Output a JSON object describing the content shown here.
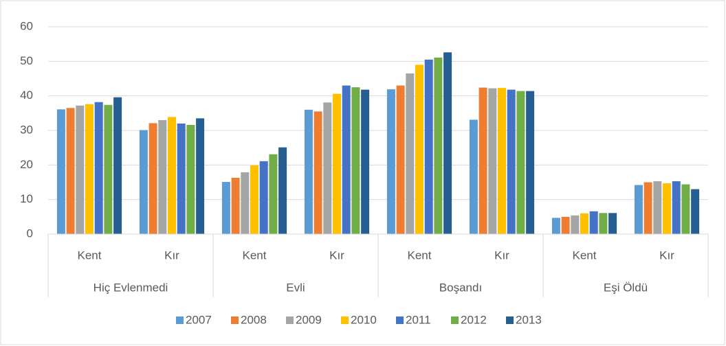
{
  "chart_data": {
    "type": "bar",
    "categories": [
      "Kent",
      "Kır",
      "Kent",
      "Kır",
      "Kent",
      "Kır",
      "Kent",
      "Kır"
    ],
    "groups": [
      "Hiç Evlenmedi",
      "Evli",
      "Boşandı",
      "Eşi Öldü"
    ],
    "series": [
      {
        "name": "2007",
        "color": "#5b9bd5",
        "values": [
          36.1,
          30.1,
          15.1,
          36.0,
          41.9,
          33.1,
          4.7,
          14.2
        ]
      },
      {
        "name": "2008",
        "color": "#ed7d31",
        "values": [
          36.5,
          32.1,
          16.3,
          35.5,
          43.0,
          42.4,
          5.0,
          15.0
        ]
      },
      {
        "name": "2009",
        "color": "#a5a5a5",
        "values": [
          37.2,
          33.0,
          17.9,
          38.1,
          46.5,
          42.2,
          5.4,
          15.3
        ]
      },
      {
        "name": "2010",
        "color": "#ffc000",
        "values": [
          37.6,
          33.9,
          19.9,
          40.6,
          49.0,
          42.3,
          6.0,
          14.7
        ]
      },
      {
        "name": "2011",
        "color": "#4472c4",
        "values": [
          38.2,
          32.0,
          21.1,
          43.0,
          50.5,
          41.8,
          6.6,
          15.3
        ]
      },
      {
        "name": "2012",
        "color": "#70ad47",
        "values": [
          37.4,
          31.6,
          23.1,
          42.5,
          51.1,
          41.4,
          6.1,
          14.4
        ]
      },
      {
        "name": "2013",
        "color": "#255e91",
        "values": [
          39.6,
          33.5,
          25.1,
          41.8,
          52.6,
          41.4,
          6.1,
          13.0
        ]
      }
    ],
    "ylim": [
      0,
      60
    ],
    "yticks": [
      0,
      10,
      20,
      30,
      40,
      50,
      60
    ],
    "grid": true,
    "legend": "bottom"
  }
}
